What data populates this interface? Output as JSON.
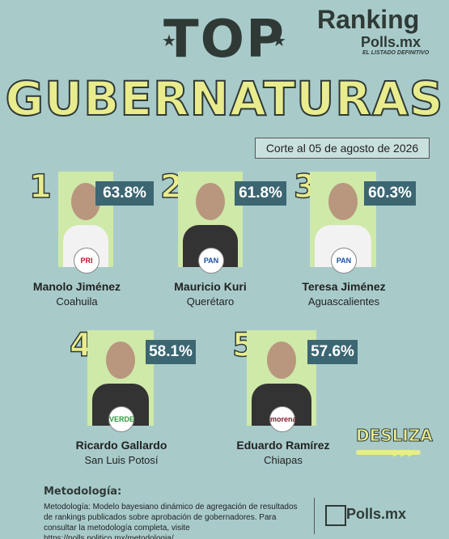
{
  "header": {
    "title_top": "TOP",
    "title_main": "GUBERNATURAS",
    "brand": "Ranking",
    "brand_sub": "Polls.mx",
    "brand_tag": "EL LISTADO DEFINITIVO",
    "date": "Corte al 05 de agosto de 2026"
  },
  "entries": [
    {
      "rank": "1",
      "name": "Manolo Jiménez",
      "state": "Coahuila",
      "approval": "63.8%",
      "party": "PRI"
    },
    {
      "rank": "2",
      "name": "Mauricio Kuri",
      "state": "Querétaro",
      "approval": "61.8%",
      "party": "PAN"
    },
    {
      "rank": "3",
      "name": "Teresa Jiménez",
      "state": "Aguascalientes",
      "approval": "60.3%",
      "party": "PAN"
    },
    {
      "rank": "4",
      "name": "Ricardo Gallardo",
      "state": "San Luis Potosí",
      "approval": "58.1%",
      "party": "VERDE"
    },
    {
      "rank": "5",
      "name": "Eduardo Ramírez",
      "state": "Chiapas",
      "approval": "57.6%",
      "party": "morena"
    }
  ],
  "swipe": "DESLIZA",
  "footer": {
    "heading": "Metodología:",
    "text": "Metodología: Modelo bayesiano dinámico de agregación de resultados de rankings publicados sobre aprobación de gobernadores. Para consultar la metodología completa, visite https://polls.politico.mx/metodologia/.",
    "logo": "Polls.mx"
  }
}
